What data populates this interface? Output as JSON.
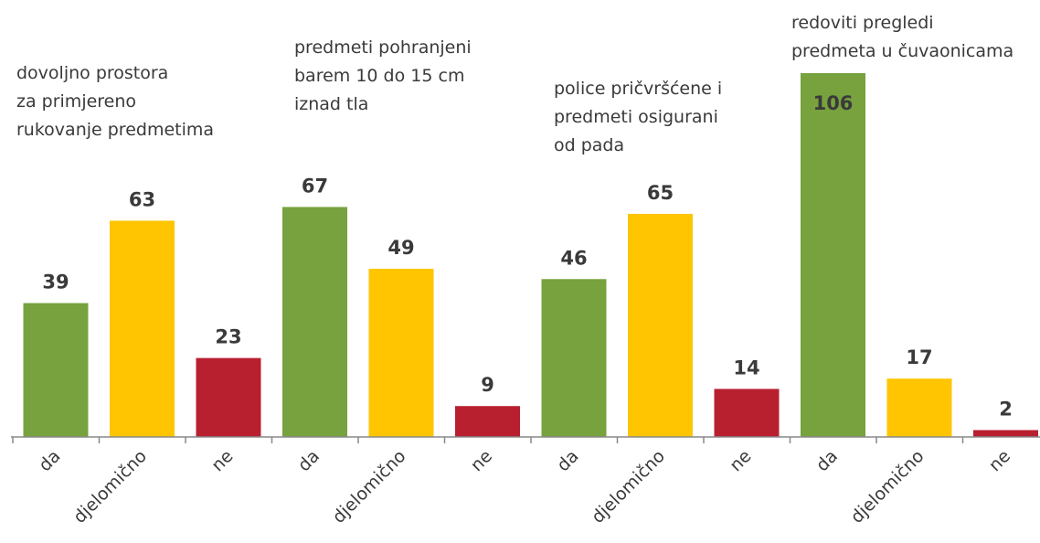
{
  "chart_data": {
    "type": "bar",
    "categories": [
      "da",
      "djelomično",
      "ne",
      "da",
      "djelomično",
      "ne",
      "da",
      "djelomično",
      "ne",
      "da",
      "djelomično",
      "ne"
    ],
    "values": [
      39,
      63,
      23,
      67,
      49,
      9,
      46,
      65,
      14,
      106,
      17,
      2
    ],
    "colors": [
      "#77a23e",
      "#fec500",
      "#b82030",
      "#77a23e",
      "#fec500",
      "#b82030",
      "#77a23e",
      "#fec500",
      "#b82030",
      "#77a23e",
      "#fec500",
      "#b82030"
    ],
    "annotations": [
      [
        "dovoljno prostora",
        "za primjereno",
        "rukovanje predmetima"
      ],
      [
        "predmeti pohranjeni",
        "barem 10 do 15 cm",
        "iznad tla"
      ],
      [
        "police pričvršćene i",
        "predmeti osigurani",
        "od pada"
      ],
      [
        "redoviti pregledi",
        "predmeta u čuvaonicama"
      ]
    ]
  }
}
